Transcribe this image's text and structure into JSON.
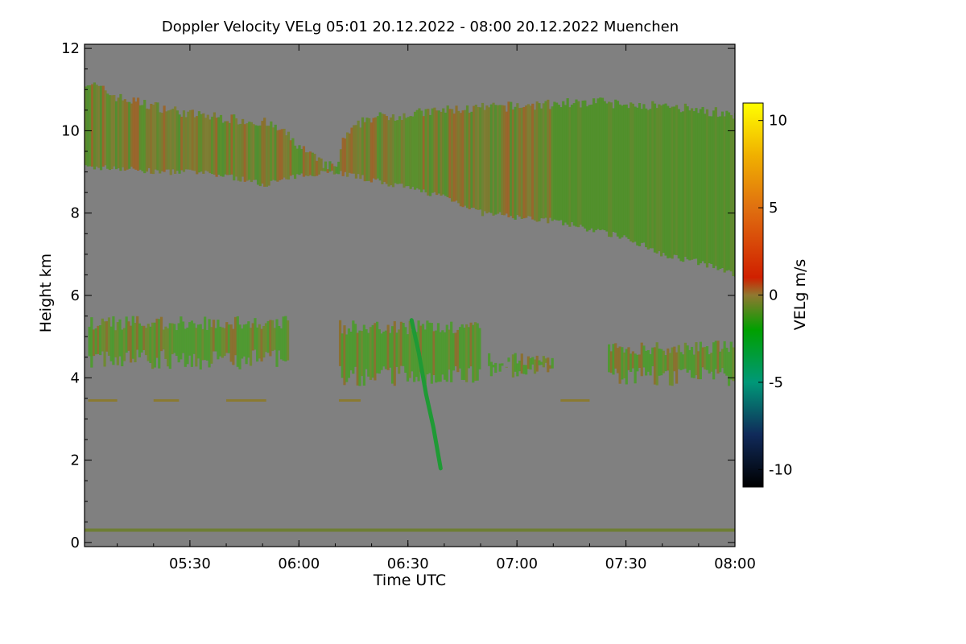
{
  "chart_data": {
    "type": "heatmap",
    "title": "Doppler Velocity VELg   05:01 20.12.2022 - 08:00 20.12.2022 Muenchen",
    "xlabel": "Time UTC",
    "ylabel": "Height km",
    "xlim_minutes_utc": [
      301,
      480
    ],
    "ylim_km": [
      -0.1,
      12.1
    ],
    "x_ticks": [
      {
        "minute": 330,
        "label": "05:30"
      },
      {
        "minute": 360,
        "label": "06:00"
      },
      {
        "minute": 390,
        "label": "06:30"
      },
      {
        "minute": 420,
        "label": "07:00"
      },
      {
        "minute": 450,
        "label": "07:30"
      },
      {
        "minute": 480,
        "label": "08:00"
      }
    ],
    "y_ticks": [
      0,
      2,
      4,
      6,
      8,
      10,
      12
    ],
    "colorbar": {
      "label": "VELg m/s",
      "range": [
        -11,
        11
      ],
      "ticks": [
        10,
        5,
        0,
        -5,
        -10
      ],
      "colors": [
        {
          "v": -11,
          "c": "#000000"
        },
        {
          "v": -8,
          "c": "#102a5a"
        },
        {
          "v": -5,
          "c": "#009878"
        },
        {
          "v": -2,
          "c": "#00a000"
        },
        {
          "v": 0,
          "c": "#907830"
        },
        {
          "v": 1,
          "c": "#d02000"
        },
        {
          "v": 5,
          "c": "#e07010"
        },
        {
          "v": 8,
          "c": "#f0b000"
        },
        {
          "v": 11,
          "c": "#ffff00"
        }
      ]
    },
    "background_color": "#808080",
    "upper_layer": {
      "description_vel": "mostly -2 to +2 m/s (olive/green)",
      "top_km": [
        [
          301,
          11.2
        ],
        [
          310,
          10.8
        ],
        [
          320,
          10.6
        ],
        [
          330,
          10.4
        ],
        [
          340,
          10.3
        ],
        [
          350,
          10.2
        ],
        [
          355,
          10.0
        ],
        [
          360,
          9.6
        ],
        [
          366,
          9.2
        ],
        [
          370,
          9.1
        ],
        [
          372,
          9.8
        ],
        [
          378,
          10.3
        ],
        [
          390,
          10.4
        ],
        [
          400,
          10.5
        ],
        [
          420,
          10.6
        ],
        [
          440,
          10.7
        ],
        [
          460,
          10.6
        ],
        [
          470,
          10.5
        ],
        [
          480,
          10.4
        ]
      ],
      "bottom_km": [
        [
          301,
          9.1
        ],
        [
          310,
          9.1
        ],
        [
          320,
          9.0
        ],
        [
          330,
          9.0
        ],
        [
          340,
          8.9
        ],
        [
          350,
          8.7
        ],
        [
          360,
          8.9
        ],
        [
          366,
          9.0
        ],
        [
          370,
          9.0
        ],
        [
          375,
          8.9
        ],
        [
          390,
          8.6
        ],
        [
          400,
          8.4
        ],
        [
          410,
          8.0
        ],
        [
          420,
          7.9
        ],
        [
          430,
          7.8
        ],
        [
          440,
          7.6
        ],
        [
          450,
          7.4
        ],
        [
          460,
          7.0
        ],
        [
          470,
          6.8
        ],
        [
          480,
          6.5
        ]
      ]
    },
    "mid_layer_segments": [
      {
        "t0": 302,
        "t1": 357,
        "top_km": 5.5,
        "bottom_km": 4.2
      },
      {
        "t0": 371,
        "t1": 410,
        "top_km": 5.4,
        "bottom_km": 3.8
      },
      {
        "t0": 412,
        "t1": 430,
        "top_km": 4.6,
        "bottom_km": 3.9
      },
      {
        "t0": 445,
        "t1": 480,
        "top_km": 4.9,
        "bottom_km": 3.8
      }
    ],
    "fall_streak": [
      [
        391,
        5.4
      ],
      [
        393,
        4.6
      ],
      [
        395,
        3.6
      ],
      [
        397,
        2.8
      ],
      [
        399,
        1.8
      ]
    ],
    "near_ground_line_km": 0.3,
    "level_3_4km_segments": [
      [
        302,
        310
      ],
      [
        320,
        327
      ],
      [
        340,
        351
      ],
      [
        371,
        377
      ],
      [
        432,
        440
      ]
    ]
  }
}
